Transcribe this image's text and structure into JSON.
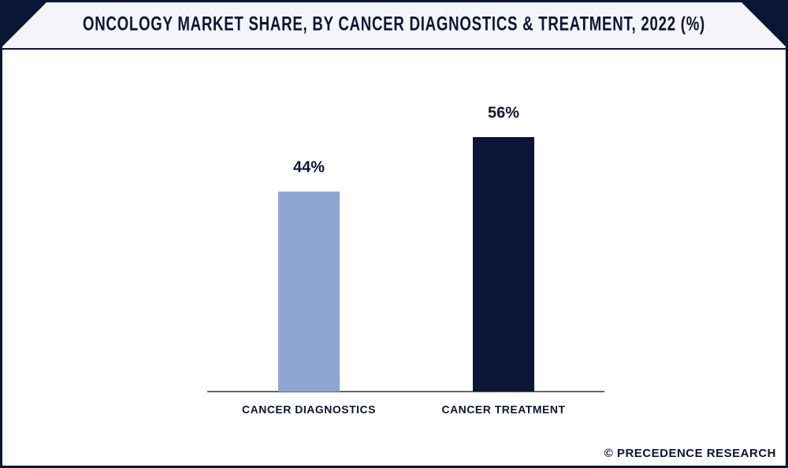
{
  "chart_data": {
    "type": "bar",
    "title": "ONCOLOGY MARKET SHARE, BY CANCER DIAGNOSTICS & TREATMENT, 2022 (%)",
    "categories": [
      "CANCER DIAGNOSTICS",
      "CANCER TREATMENT"
    ],
    "values": [
      44,
      56
    ],
    "value_labels": [
      "44%",
      "56%"
    ],
    "colors": [
      "#8fa5d3",
      "#0b1535"
    ],
    "source": "© PRECEDENCE RESEARCH"
  }
}
